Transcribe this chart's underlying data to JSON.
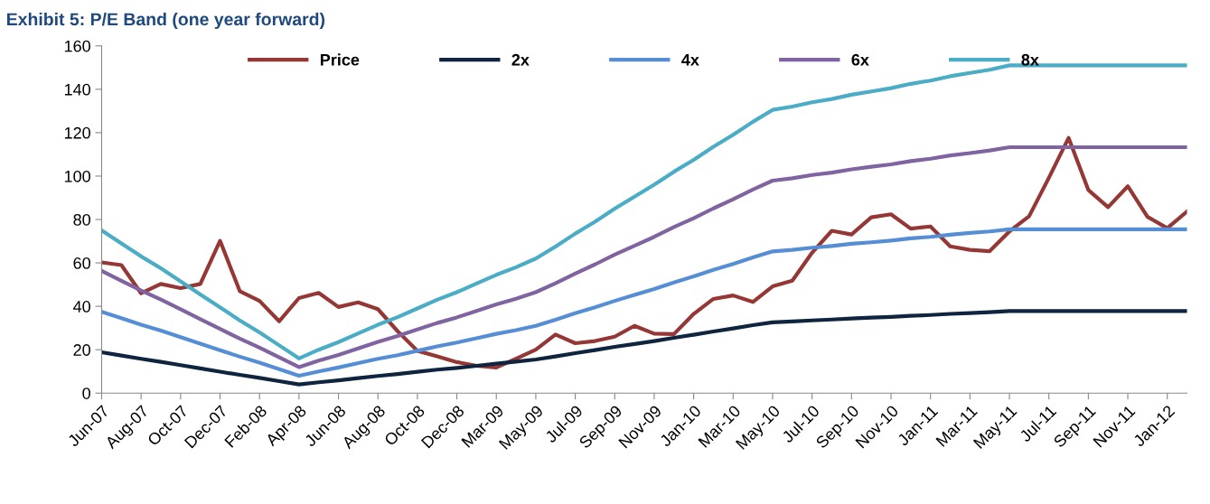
{
  "chart_data": {
    "type": "line",
    "title": "Exhibit 5: P/E Band (one year forward)",
    "categories": [
      "Jun-07",
      null,
      "Aug-07",
      null,
      "Oct-07",
      null,
      "Dec-07",
      null,
      "Feb-08",
      null,
      "Apr-08",
      null,
      "Jun-08",
      null,
      "Aug-08",
      null,
      "Oct-08",
      null,
      "Dec-08",
      null,
      "Mar-09",
      null,
      "May-09",
      null,
      "Jul-09",
      null,
      "Sep-09",
      null,
      "Nov-09",
      null,
      "Jan-10",
      null,
      "Mar-10",
      null,
      "May-10",
      null,
      "Jul-10",
      null,
      "Sep-10",
      null,
      "Nov-10",
      null,
      "Jan-11",
      null,
      "Mar-11",
      null,
      "May-11",
      null,
      "Jul-11",
      null,
      "Sep-11",
      null,
      "Nov-11",
      null,
      "Jan-12",
      null
    ],
    "series": [
      {
        "name": "Price",
        "color": "#953735",
        "values": [
          60.2,
          59,
          46,
          50.3,
          48.4,
          50.3,
          70.2,
          47,
          42.5,
          33.1,
          43.8,
          46.2,
          39.7,
          41.8,
          38.7,
          28.5,
          19.5,
          17,
          14.3,
          12.6,
          11.8,
          15.9,
          20,
          27,
          23,
          24,
          26,
          31,
          27.4,
          27.2,
          36.5,
          43.4,
          45,
          42,
          49.2,
          51.8,
          64.7,
          74.8,
          73.1,
          81,
          82.4,
          75.8,
          76.8,
          67.6,
          66,
          65.4,
          74.5,
          81.5,
          99.2,
          117.6,
          93.6,
          85.7,
          95.3,
          81.2,
          76,
          83.7
        ]
      },
      {
        "name": "2x",
        "color": "#0f243e",
        "values": [
          18.8,
          17.3,
          15.8,
          14.4,
          12.9,
          11.4,
          9.9,
          8.4,
          7,
          5.5,
          4,
          5,
          5.9,
          6.9,
          7.9,
          8.8,
          9.8,
          10.8,
          11.6,
          12.6,
          13.6,
          14.5,
          15.5,
          16.9,
          18.4,
          19.8,
          21.3,
          22.6,
          24,
          25.5,
          26.9,
          28.4,
          29.8,
          31.3,
          32.6,
          33,
          33.5,
          33.9,
          34.4,
          34.8,
          35.1,
          35.6,
          36,
          36.5,
          36.9,
          37.3,
          37.8,
          37.8,
          37.8,
          37.8,
          37.8,
          37.8,
          37.8,
          37.8,
          37.8,
          37.8
        ]
      },
      {
        "name": "4x",
        "color": "#558ed5",
        "values": [
          37.5,
          34.5,
          31.5,
          28.8,
          25.8,
          22.8,
          19.8,
          16.8,
          14,
          11,
          8,
          10,
          11.8,
          13.8,
          15.8,
          17.5,
          19.5,
          21.5,
          23.3,
          25.3,
          27.3,
          29,
          31,
          33.8,
          36.8,
          39.5,
          42.5,
          45.3,
          48,
          51,
          53.8,
          56.8,
          59.5,
          62.5,
          65.3,
          66,
          67,
          67.8,
          68.8,
          69.5,
          70.3,
          71.3,
          72,
          73,
          73.8,
          74.5,
          75.5,
          75.5,
          75.5,
          75.5,
          75.5,
          75.5,
          75.5,
          75.5,
          75.5,
          75.5
        ]
      },
      {
        "name": "6x",
        "color": "#8064a2",
        "values": [
          56.3,
          51.8,
          47.3,
          43.1,
          38.6,
          34.1,
          29.6,
          25.1,
          21,
          16.5,
          12,
          15,
          17.6,
          20.6,
          23.6,
          26.3,
          29.3,
          32.3,
          34.9,
          37.9,
          40.9,
          43.5,
          46.5,
          50.6,
          55.1,
          59.3,
          63.8,
          67.9,
          72,
          76.5,
          80.6,
          85.1,
          89.3,
          93.8,
          97.9,
          99,
          100.5,
          101.6,
          103.1,
          104.3,
          105.4,
          106.9,
          108,
          109.5,
          110.6,
          111.8,
          113.3,
          113.3,
          113.3,
          113.3,
          113.3,
          113.3,
          113.3,
          113.3,
          113.3,
          113.3
        ]
      },
      {
        "name": "8x",
        "color": "#4bacc6",
        "values": [
          75,
          69,
          63,
          57.5,
          51.5,
          45.5,
          39.5,
          33.5,
          28,
          22,
          16,
          20,
          23.5,
          27.5,
          31.5,
          35,
          39,
          43,
          46.5,
          50.5,
          54.5,
          58,
          62,
          67.5,
          73.5,
          79,
          85,
          90.5,
          96,
          102,
          107.5,
          113.5,
          119,
          125,
          130.5,
          132,
          134,
          135.5,
          137.5,
          139,
          140.5,
          142.5,
          144,
          146,
          147.5,
          149,
          151,
          151,
          151,
          151,
          151,
          151,
          151,
          151,
          151,
          151
        ]
      }
    ],
    "ylim": [
      0,
      160
    ],
    "yticks": [
      0,
      20,
      40,
      60,
      80,
      100,
      120,
      140,
      160
    ],
    "grid": false,
    "legend": "top",
    "marker": "none",
    "line_style": "solid"
  }
}
